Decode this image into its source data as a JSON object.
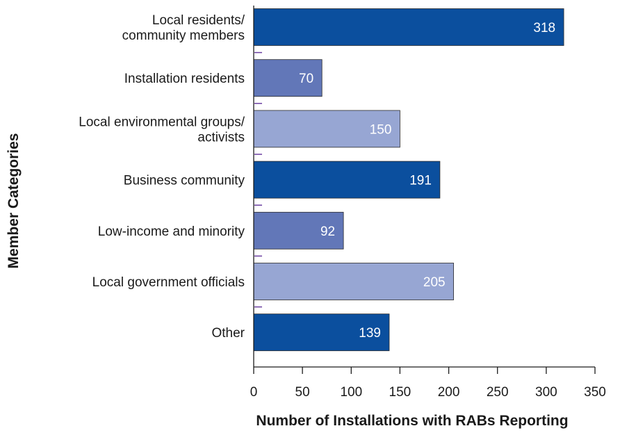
{
  "chart_data": {
    "type": "bar",
    "orientation": "horizontal",
    "categories": [
      [
        "Local residents/",
        "community members"
      ],
      [
        "Installation residents"
      ],
      [
        "Local environmental groups/",
        "activists"
      ],
      [
        "Business community"
      ],
      [
        "Low-income and minority"
      ],
      [
        "Local government officials"
      ],
      [
        "Other"
      ]
    ],
    "values": [
      318,
      70,
      150,
      191,
      92,
      205,
      139
    ],
    "bar_colors": [
      "#0b4f9e",
      "#6277b8",
      "#97a6d3",
      "#0b4f9e",
      "#6277b8",
      "#97a6d3",
      "#0b4f9e"
    ],
    "xlabel": "Number of Installations with RABs Reporting",
    "ylabel": "Member Categories",
    "xlim": [
      0,
      350
    ],
    "xticks": [
      0,
      50,
      100,
      150,
      200,
      250,
      300,
      350
    ],
    "grid": false,
    "legend": "none",
    "colors": {
      "axis": "#1a1a1a",
      "separator_tick": "#6a3fa0"
    }
  }
}
